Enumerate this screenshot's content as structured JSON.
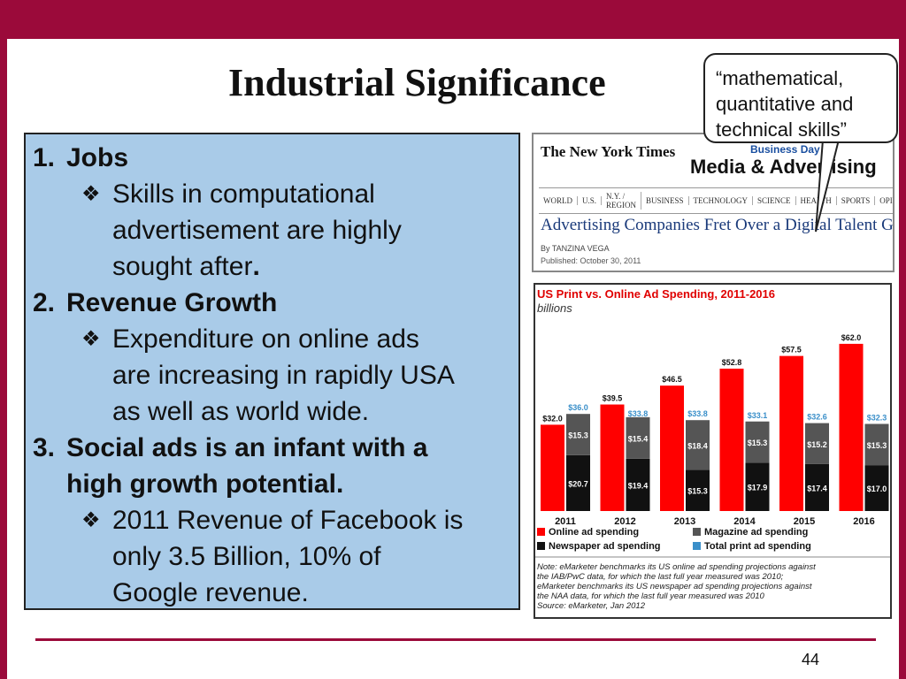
{
  "slide": {
    "title": "Industrial Significance",
    "page_number": "44",
    "colors": {
      "accent": "#9b0a3a",
      "content_box": "#a9cbe8"
    }
  },
  "content": {
    "items": [
      {
        "num": "1.",
        "heading": "Jobs",
        "bullets": [
          {
            "lines": [
              "Skills in computational",
              "advertisement are highly",
              "sought after"
            ],
            "trail": "."
          }
        ]
      },
      {
        "num": "2.",
        "heading": "Revenue Growth",
        "bullets": [
          {
            "lines": [
              "Expenditure on online ads",
              "are increasing in rapidly USA",
              "as well as world wide."
            ],
            "trail": ""
          }
        ]
      },
      {
        "num": "3.",
        "heading_lines": [
          "Social ads is an infant with a",
          "high growth potential."
        ],
        "bullets": [
          {
            "lines": [
              "2011 Revenue of Facebook is",
              "only 3.5 Billion, 10% of",
              "Google revenue."
            ],
            "trail": ""
          }
        ]
      }
    ],
    "bullet_icon": "diamond-bullet-icon"
  },
  "callout": {
    "lines": [
      "“mathematical,",
      "quantitative and",
      "technical skills”"
    ]
  },
  "nyt": {
    "logo": "The New York Times",
    "section": "Business Day",
    "header": "Media & Advertising",
    "nav": [
      "WORLD",
      "U.S.",
      "N.Y. / REGION",
      "BUSINESS",
      "TECHNOLOGY",
      "SCIENCE",
      "HEALTH",
      "SPORTS",
      "OPINION"
    ],
    "headline": "Advertising Companies Fret Over a Digital Talent Gap",
    "byline": "By TANZINA VEGA",
    "date": "Published: October 30, 2011"
  },
  "chart_data": {
    "type": "bar",
    "title": "US Print vs. Online Ad Spending, 2011-2016",
    "subtitle": "billions",
    "categories": [
      "2011",
      "2012",
      "2013",
      "2014",
      "2015",
      "2016"
    ],
    "series": [
      {
        "name": "Online ad spending",
        "color": "#ff0000",
        "values": [
          32.0,
          39.5,
          46.5,
          52.8,
          57.5,
          62.0
        ]
      },
      {
        "name": "Newspaper ad spending",
        "color": "#111111",
        "values": [
          20.7,
          19.4,
          15.3,
          17.9,
          17.4,
          17.0
        ]
      },
      {
        "name": "Magazine ad spending",
        "color": "#555555",
        "values": [
          15.3,
          15.4,
          18.4,
          15.3,
          15.2,
          15.3
        ]
      },
      {
        "name": "Total print ad spending",
        "color": "#3a8fc9",
        "values": [
          36.0,
          33.8,
          33.8,
          33.1,
          32.6,
          32.3
        ]
      }
    ],
    "labels": {
      "online": [
        "$32.0",
        "$39.5",
        "$46.5",
        "$52.8",
        "$57.5",
        "$62.0"
      ],
      "newspaper": [
        "$20.7",
        "$19.4",
        "$15.3",
        "$17.9",
        "$17.4",
        "$17.0"
      ],
      "magazine": [
        "$15.3",
        "$15.4",
        "$18.4",
        "$15.3",
        "$15.2",
        "$15.3"
      ],
      "total": [
        "$36.0",
        "$33.8",
        "$33.8",
        "$33.1",
        "$32.6",
        "$32.3"
      ]
    },
    "legend": [
      "Online ad spending",
      "Magazine ad spending",
      "Newspaper ad spending",
      "Total print ad spending"
    ],
    "legend_placement": "bottom",
    "notes": [
      "Note: eMarketer benchmarks its US online ad spending projections against",
      "the IAB/PwC data, for which the last full year measured was 2010;",
      "eMarketer benchmarks its US newspaper ad spending projections against",
      "the NAA data, for which the last full year measured was 2010",
      "Source: eMarketer, Jan 2012"
    ]
  }
}
